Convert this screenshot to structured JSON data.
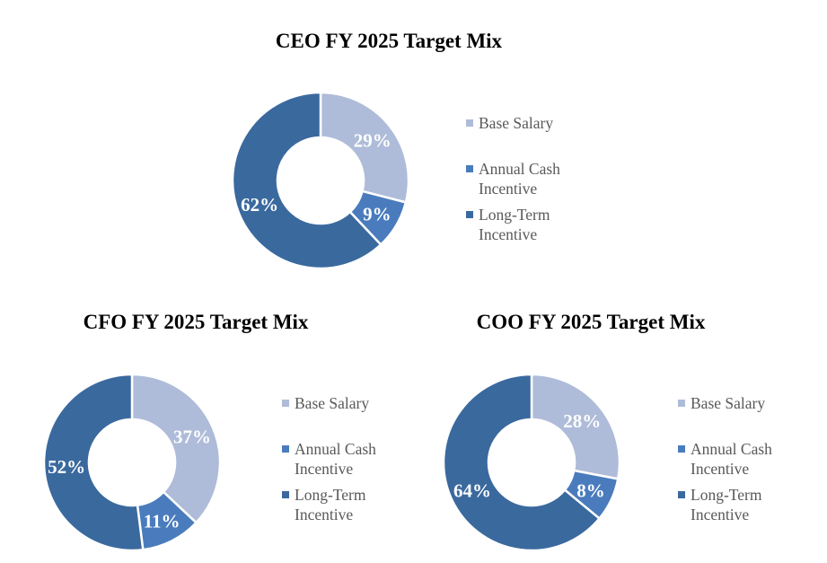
{
  "page": {
    "background": "#ffffff"
  },
  "colors": {
    "base_salary": "#aebcd9",
    "annual_cash_incentive": "#4a7cbd",
    "long_term_incentive": "#3a699e",
    "legend_text": "#595959",
    "title_text": "#000000",
    "data_label_text": "#ffffff"
  },
  "chart_data": [
    {
      "type": "pie",
      "subtype": "donut",
      "title": "CEO FY 2025 Target Mix",
      "categories": [
        "Base Salary",
        "Annual Cash Incentive",
        "Long-Term Incentive"
      ],
      "values": [
        29,
        9,
        62
      ],
      "labels": [
        "29%",
        "9%",
        "62%"
      ],
      "colors": [
        "#aebcd9",
        "#4a7cbd",
        "#3a699e"
      ],
      "start_angle_deg": 0,
      "direction": "clockwise",
      "hole_ratio": 0.49,
      "legend_position": "right"
    },
    {
      "type": "pie",
      "subtype": "donut",
      "title": "CFO FY 2025 Target Mix",
      "categories": [
        "Base Salary",
        "Annual Cash Incentive",
        "Long-Term Incentive"
      ],
      "values": [
        37,
        11,
        52
      ],
      "labels": [
        "37%",
        "11%",
        "52%"
      ],
      "colors": [
        "#aebcd9",
        "#4a7cbd",
        "#3a699e"
      ],
      "start_angle_deg": 0,
      "direction": "clockwise",
      "hole_ratio": 0.49,
      "legend_position": "right"
    },
    {
      "type": "pie",
      "subtype": "donut",
      "title": "COO FY 2025 Target Mix",
      "categories": [
        "Base Salary",
        "Annual Cash Incentive",
        "Long-Term Incentive"
      ],
      "values": [
        28,
        8,
        64
      ],
      "labels": [
        "28%",
        "8%",
        "64%"
      ],
      "colors": [
        "#aebcd9",
        "#4a7cbd",
        "#3a699e"
      ],
      "start_angle_deg": 0,
      "direction": "clockwise",
      "hole_ratio": 0.49,
      "legend_position": "right"
    }
  ]
}
